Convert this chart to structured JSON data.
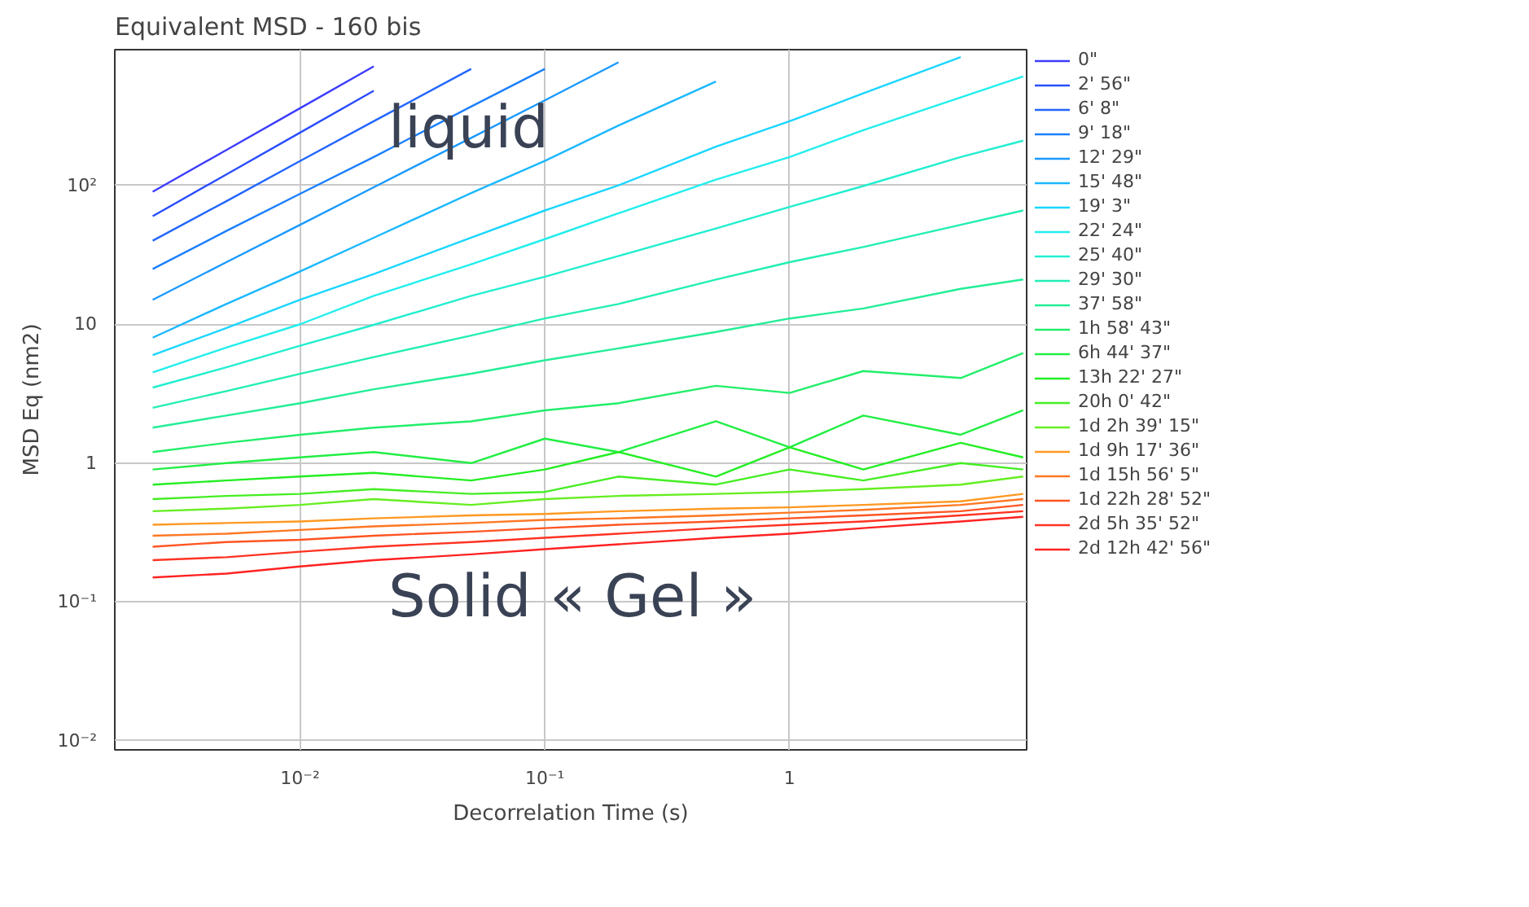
{
  "chart_data": {
    "type": "line",
    "title": "Equivalent MSD - 160 bis",
    "xlabel": "Decorrelation Time (s)",
    "ylabel": "MSD Eq (nm2)",
    "x": [
      0.0025,
      0.005,
      0.01,
      0.02,
      0.05,
      0.1,
      0.2,
      0.5,
      1,
      2,
      5,
      9
    ],
    "log": "xy",
    "xlim": [
      0.00175,
      9.3
    ],
    "ylim": [
      0.0086,
      950
    ],
    "xticks": [
      {
        "value": 0.01,
        "label": "10⁻²"
      },
      {
        "value": 0.1,
        "label": "10⁻¹"
      },
      1
    ],
    "yticks": [
      {
        "value": 0.01,
        "label": "10⁻²"
      },
      {
        "value": 0.1,
        "label": "10⁻¹"
      },
      1,
      10,
      {
        "value": 100,
        "label": "10²"
      }
    ],
    "grid": true,
    "legend": "right",
    "line_style": "solid",
    "marker": "none",
    "annotations": [
      "liquid",
      "Solid « Gel »"
    ],
    "series": [
      {
        "name": "0\"",
        "color": "#3c3cff",
        "values": [
          90,
          180,
          360,
          720,
          null,
          null,
          null,
          null,
          null,
          null,
          null,
          null
        ]
      },
      {
        "name": "2' 56\"",
        "color": "#2a4dff",
        "values": [
          60,
          120,
          240,
          480,
          null,
          null,
          null,
          null,
          null,
          null,
          null,
          null
        ]
      },
      {
        "name": "6' 8\"",
        "color": "#2266ff",
        "values": [
          40,
          77,
          150,
          290,
          690,
          null,
          null,
          null,
          null,
          null,
          null,
          null
        ]
      },
      {
        "name": "9' 18\"",
        "color": "#1a7fff",
        "values": [
          25,
          47,
          87,
          160,
          370,
          690,
          null,
          null,
          null,
          null,
          null,
          null
        ]
      },
      {
        "name": "12' 29\"",
        "color": "#1a99ff",
        "values": [
          15,
          28,
          52,
          97,
          220,
          410,
          770,
          null,
          null,
          null,
          null,
          null
        ]
      },
      {
        "name": "15' 48\"",
        "color": "#1ab8ff",
        "values": [
          8,
          14,
          24,
          42,
          88,
          150,
          270,
          560,
          null,
          null,
          null,
          null
        ]
      },
      {
        "name": "19' 3\"",
        "color": "#1ad6ff",
        "values": [
          6,
          9.4,
          15,
          23,
          42,
          66,
          100,
          190,
          290,
          460,
          840,
          null
        ]
      },
      {
        "name": "22' 24\"",
        "color": "#22eeee",
        "values": [
          4.5,
          6.8,
          10,
          16,
          27,
          41,
          63,
          110,
          160,
          250,
          430,
          610
        ]
      },
      {
        "name": "25' 40\"",
        "color": "#22eed0",
        "values": [
          3.5,
          4.9,
          7,
          9.9,
          16,
          22,
          31,
          49,
          70,
          99,
          160,
          210
        ]
      },
      {
        "name": "29' 30\"",
        "color": "#22eeb4",
        "values": [
          2.5,
          3.3,
          4.4,
          5.8,
          8.3,
          11,
          14,
          21,
          28,
          36,
          52,
          66
        ]
      },
      {
        "name": "37' 58\"",
        "color": "#22ee96",
        "values": [
          1.8,
          2.2,
          2.7,
          3.4,
          4.4,
          5.5,
          6.7,
          8.8,
          11,
          13,
          18,
          21
        ]
      },
      {
        "name": "1h 58' 43\"",
        "color": "#22ee6a",
        "values": [
          1.2,
          1.4,
          1.6,
          1.8,
          2,
          2.4,
          2.7,
          3.6,
          3.2,
          4.6,
          4.1,
          6.2
        ]
      },
      {
        "name": "6h 44' 37\"",
        "color": "#22ee44",
        "values": [
          0.9,
          1,
          1.1,
          1.2,
          1,
          1.5,
          1.2,
          2,
          1.3,
          2.2,
          1.6,
          2.4
        ]
      },
      {
        "name": "13h 22' 27\"",
        "color": "#22ee22",
        "values": [
          0.7,
          0.75,
          0.8,
          0.85,
          0.75,
          0.9,
          1.2,
          0.8,
          1.3,
          0.9,
          1.4,
          1.1
        ]
      },
      {
        "name": "20h 0' 42\"",
        "color": "#44ee22",
        "values": [
          0.55,
          0.58,
          0.6,
          0.65,
          0.6,
          0.62,
          0.8,
          0.7,
          0.9,
          0.75,
          1,
          0.9
        ]
      },
      {
        "name": "1d 2h 39' 15\"",
        "color": "#66ee22",
        "values": [
          0.45,
          0.47,
          0.5,
          0.55,
          0.5,
          0.55,
          0.58,
          0.6,
          0.62,
          0.65,
          0.7,
          0.8
        ]
      },
      {
        "name": "1d 9h 17' 36\"",
        "color": "#ff9922",
        "values": [
          0.36,
          0.37,
          0.38,
          0.4,
          0.42,
          0.43,
          0.45,
          0.47,
          0.48,
          0.5,
          0.53,
          0.6
        ]
      },
      {
        "name": "1d 15h 56' 5\"",
        "color": "#ff7722",
        "values": [
          0.3,
          0.31,
          0.33,
          0.35,
          0.37,
          0.39,
          0.4,
          0.42,
          0.44,
          0.46,
          0.5,
          0.55
        ]
      },
      {
        "name": "1d 22h 28' 52\"",
        "color": "#ff5522",
        "values": [
          0.25,
          0.27,
          0.28,
          0.3,
          0.32,
          0.34,
          0.36,
          0.38,
          0.4,
          0.42,
          0.45,
          0.5
        ]
      },
      {
        "name": "2d 5h 35' 52\"",
        "color": "#ff3322",
        "values": [
          0.2,
          0.21,
          0.23,
          0.25,
          0.27,
          0.29,
          0.31,
          0.34,
          0.36,
          0.38,
          0.42,
          0.45
        ]
      },
      {
        "name": "2d 12h 42' 56\"",
        "color": "#ff2222",
        "values": [
          0.15,
          0.16,
          0.18,
          0.2,
          0.22,
          0.24,
          0.26,
          0.29,
          0.31,
          0.34,
          0.38,
          0.41
        ]
      }
    ]
  }
}
